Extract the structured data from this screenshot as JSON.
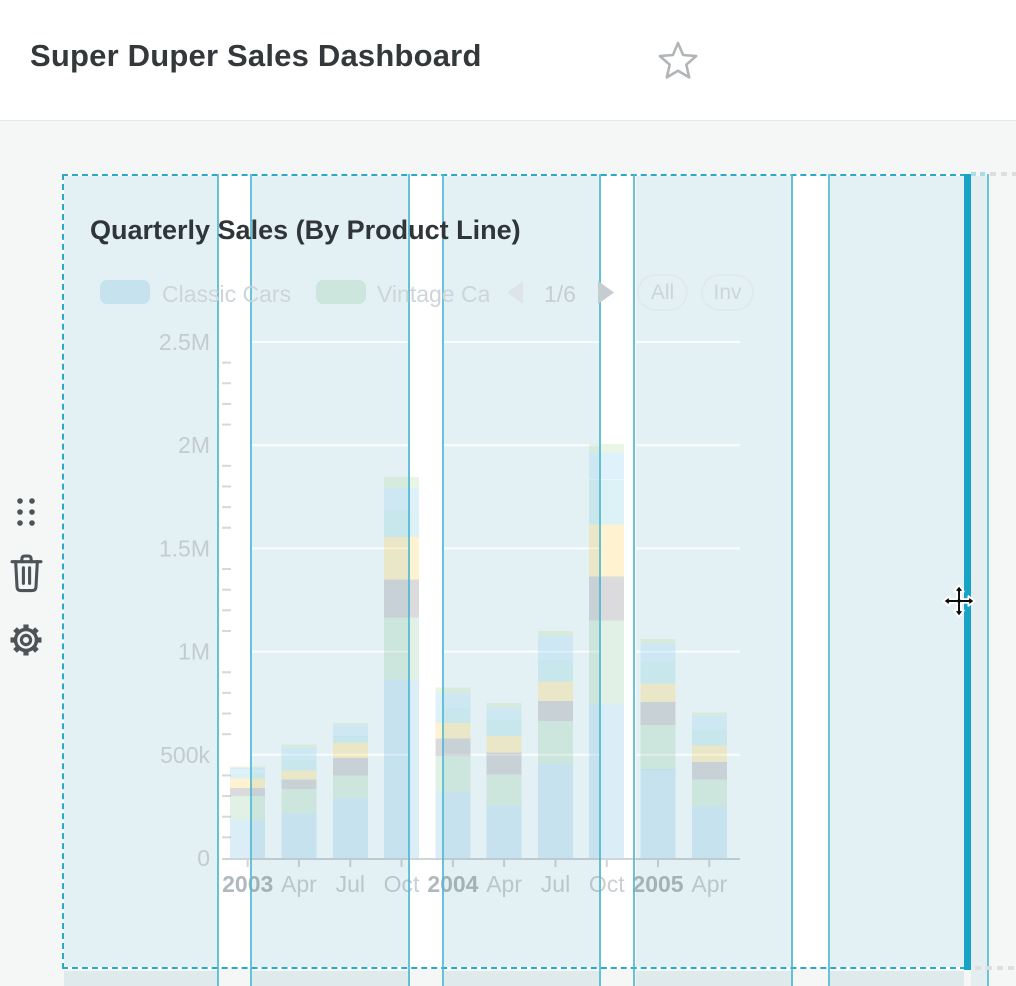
{
  "header": {
    "title": "Super Duper Sales Dashboard",
    "favorite_icon": "star-outline"
  },
  "widget_toolbar": {
    "icons": [
      "drag-handle",
      "trash",
      "gear"
    ]
  },
  "widget": {
    "title": "Quarterly Sales (By Product Line)",
    "legend": {
      "items": [
        {
          "label": "Classic Cars",
          "label_visible": "Classic Cars",
          "color": "rgba(57,162,210,0.18)"
        },
        {
          "label": "Vintage Cars",
          "label_visible": "Vintage Ca",
          "color": "rgba(110,185,130,0.20)"
        }
      ],
      "pager": {
        "current": "1/6",
        "prev_icon": "chevron-left",
        "next_icon": "chevron-right"
      },
      "buttons": [
        {
          "label": "All"
        },
        {
          "label": "Inv"
        }
      ]
    }
  },
  "cursor": {
    "type": "move-cursor"
  },
  "colors": {
    "page_bg": "#f5f6f6",
    "panel_bg": "#ffffff",
    "panel_border_cyan": "#29aac9",
    "grid_guide_cyan": "#4fb9d0",
    "drag_edge_cyan": "#17a2c7",
    "column_tint": "#e4f1f4",
    "title_text": "#2f3538",
    "faded_text": "#ccd5d9",
    "axis_label": "#c3cbd1"
  },
  "chart_data": {
    "type": "bar",
    "stacked": true,
    "title": "Quarterly Sales (By Product Line)",
    "legend_pages_indicator": "1/6",
    "categories": [
      "2003 Jan",
      "2003 Apr",
      "2003 Jul",
      "2003 Oct",
      "2004 Jan",
      "2004 Apr",
      "2004 Jul",
      "2004 Oct",
      "2005 Jan",
      "2005 Apr"
    ],
    "x_tick_labels": [
      {
        "label": "2003",
        "bold": true
      },
      {
        "label": "Apr",
        "bold": false
      },
      {
        "label": "Jul",
        "bold": false
      },
      {
        "label": "Oct",
        "bold": false
      },
      {
        "label": "2004",
        "bold": true
      },
      {
        "label": "Apr",
        "bold": false
      },
      {
        "label": "Jul",
        "bold": false
      },
      {
        "label": "Oct",
        "bold": false
      },
      {
        "label": "2005",
        "bold": true
      },
      {
        "label": "Apr",
        "bold": false
      }
    ],
    "y_ticks": [
      {
        "value": 0,
        "label": "0"
      },
      {
        "value": 500000,
        "label": "500k"
      },
      {
        "value": 1000000,
        "label": "1M"
      },
      {
        "value": 1500000,
        "label": "1.5M"
      },
      {
        "value": 2000000,
        "label": "2M"
      },
      {
        "value": 2500000,
        "label": "2.5M"
      }
    ],
    "ylim": [
      0,
      2500000
    ],
    "minor_tick_step": 100000,
    "grid": true,
    "legend_position": "top",
    "series": [
      {
        "name": "Classic Cars",
        "color": "rgba(57,162,210,0.18)",
        "values": [
          185000,
          215000,
          290000,
          865000,
          320000,
          255000,
          455000,
          745000,
          430000,
          250000
        ]
      },
      {
        "name": "Vintage Cars",
        "color": "rgba(110,185,130,0.20)",
        "values": [
          115000,
          120000,
          110000,
          300000,
          175000,
          150000,
          205000,
          405000,
          215000,
          130000
        ]
      },
      {
        "name": "",
        "color_name": "gray",
        "color": "rgba(135,135,142,0.30)",
        "values": [
          40000,
          45000,
          85000,
          185000,
          85000,
          105000,
          100000,
          215000,
          110000,
          85000
        ]
      },
      {
        "name": "",
        "color_name": "yellow",
        "color": "rgba(255,200,64,0.24)",
        "values": [
          45000,
          45000,
          75000,
          205000,
          75000,
          80000,
          95000,
          250000,
          90000,
          80000
        ]
      },
      {
        "name": "",
        "color_name": "cyan",
        "color": "rgba(95,196,212,0.22)",
        "values": [
          25000,
          50000,
          30000,
          130000,
          75000,
          80000,
          105000,
          220000,
          105000,
          75000
        ]
      },
      {
        "name": "",
        "color_name": "light-blue",
        "color": "rgba(160,214,240,0.34)",
        "values": [
          25000,
          60000,
          55000,
          110000,
          70000,
          60000,
          115000,
          130000,
          90000,
          70000
        ]
      },
      {
        "name": "",
        "color_name": "light-green",
        "color": "rgba(175,220,150,0.26)",
        "values": [
          8000,
          15000,
          10000,
          50000,
          25000,
          20000,
          25000,
          40000,
          20000,
          15000
        ]
      }
    ]
  }
}
